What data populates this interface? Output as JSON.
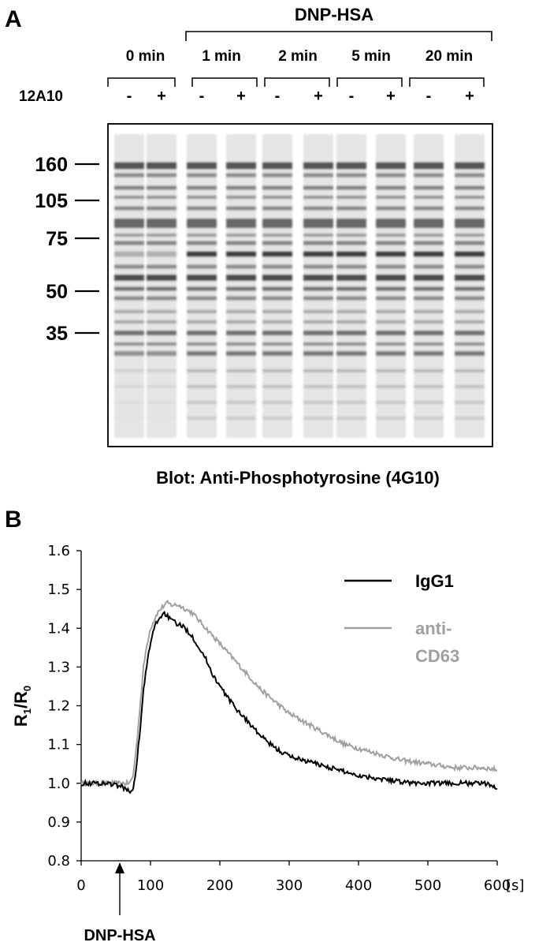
{
  "panelA": {
    "label": "A",
    "treatment": "DNP-HSA",
    "antibody_row_label": "12A10",
    "timepoints": [
      "0 min",
      "1 min",
      "2 min",
      "5 min",
      "20 min"
    ],
    "lane_signs": [
      "-",
      "+",
      "-",
      "+",
      "-",
      "+",
      "-",
      "+",
      "-",
      "+"
    ],
    "mw_markers": [
      "160",
      "105",
      "75",
      "50",
      "35"
    ],
    "blot_caption": "Blot: Anti-Phosphotyrosine (4G10)"
  },
  "panelB": {
    "label": "B",
    "ylabel_main": "R",
    "ylabel_sub1": "1",
    "ylabel_div": "/R",
    "ylabel_sub0": "0",
    "x_unit": "[s]",
    "arrow_label": "DNP-HSA",
    "legend": [
      {
        "name": "IgG1",
        "color": "#000000"
      },
      {
        "name_line1": "anti-",
        "name_line2": "CD63",
        "color": "#a0a0a0"
      }
    ]
  },
  "chart_data": {
    "type": "line",
    "title": "",
    "xlabel": "[s]",
    "ylabel": "R1/R0",
    "xlim": [
      0,
      600
    ],
    "ylim": [
      0.8,
      1.6
    ],
    "xticks": [
      "0",
      "100",
      "200",
      "300",
      "400",
      "500",
      "600"
    ],
    "yticks": [
      "0.8",
      "0.9",
      "1.0",
      "1.1",
      "1.2",
      "1.3",
      "1.4",
      "1.5",
      "1.6"
    ],
    "stimulus_time": 60,
    "series": [
      {
        "name": "IgG1",
        "color": "#000000",
        "x": [
          0,
          20,
          40,
          60,
          70,
          75,
          80,
          85,
          90,
          95,
          100,
          105,
          110,
          115,
          120,
          125,
          130,
          140,
          150,
          160,
          170,
          180,
          190,
          200,
          220,
          240,
          260,
          280,
          300,
          320,
          340,
          360,
          380,
          400,
          420,
          440,
          460,
          480,
          500,
          520,
          540,
          560,
          580,
          600
        ],
        "y": [
          1.0,
          1.0,
          1.0,
          0.99,
          0.98,
          0.98,
          1.05,
          1.14,
          1.24,
          1.31,
          1.36,
          1.4,
          1.42,
          1.43,
          1.44,
          1.43,
          1.42,
          1.41,
          1.4,
          1.38,
          1.35,
          1.32,
          1.28,
          1.25,
          1.2,
          1.16,
          1.12,
          1.09,
          1.07,
          1.06,
          1.05,
          1.04,
          1.03,
          1.02,
          1.015,
          1.01,
          1.005,
          1.0,
          1.0,
          1.0,
          1.0,
          1.0,
          1.0,
          0.99
        ]
      },
      {
        "name": "anti-CD63",
        "color": "#a0a0a0",
        "x": [
          0,
          20,
          40,
          60,
          70,
          75,
          80,
          85,
          90,
          95,
          100,
          105,
          110,
          115,
          120,
          125,
          130,
          140,
          150,
          160,
          170,
          180,
          190,
          200,
          220,
          240,
          260,
          280,
          300,
          320,
          340,
          360,
          380,
          400,
          420,
          440,
          460,
          480,
          500,
          520,
          540,
          560,
          580,
          600
        ],
        "y": [
          1.0,
          1.0,
          1.0,
          1.0,
          1.0,
          1.02,
          1.1,
          1.2,
          1.3,
          1.36,
          1.4,
          1.42,
          1.44,
          1.45,
          1.46,
          1.465,
          1.46,
          1.46,
          1.45,
          1.44,
          1.42,
          1.4,
          1.38,
          1.36,
          1.32,
          1.28,
          1.24,
          1.21,
          1.18,
          1.16,
          1.14,
          1.12,
          1.1,
          1.09,
          1.08,
          1.07,
          1.06,
          1.055,
          1.05,
          1.045,
          1.04,
          1.04,
          1.04,
          1.035
        ]
      }
    ],
    "legend_position": "top-right",
    "grid": false
  }
}
